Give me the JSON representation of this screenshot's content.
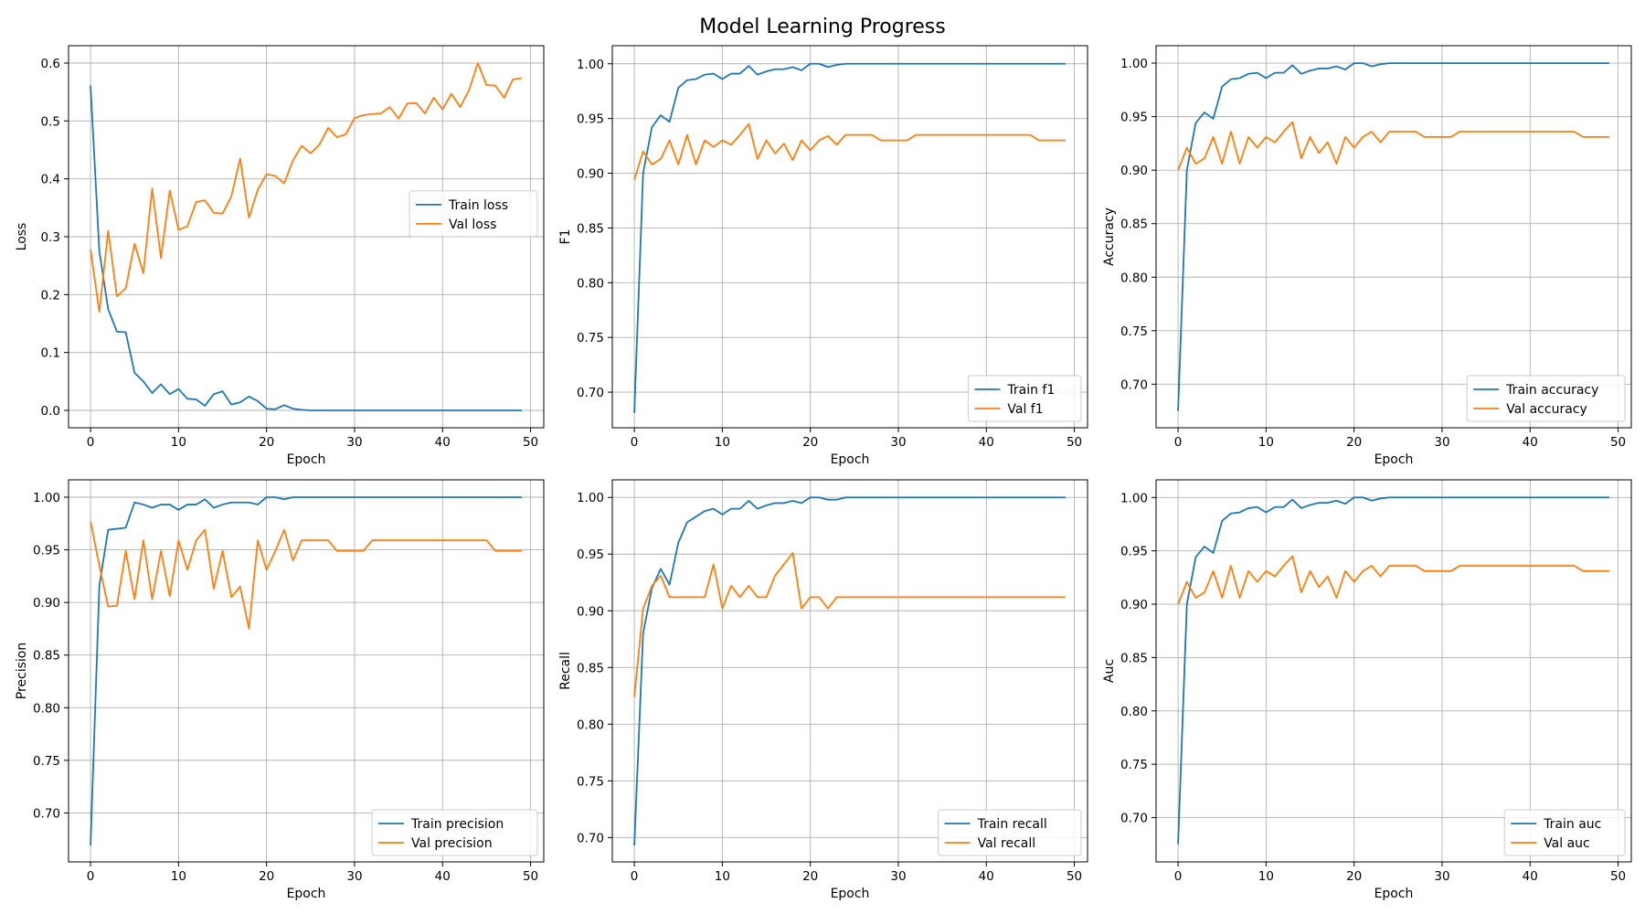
{
  "figure": {
    "title": "Model Learning Progress",
    "colors": {
      "train": "#1f77b4",
      "val": "#ff7f0e",
      "grid": "#b0b0b0"
    }
  },
  "chart_data": [
    {
      "type": "line",
      "xlabel": "Epoch",
      "ylabel": "Loss",
      "xlim": [
        -2.5,
        51.5
      ],
      "ylim": [
        -0.03,
        0.63
      ],
      "xticks": [
        0,
        10,
        20,
        30,
        40,
        50
      ],
      "yticks": [
        0.0,
        0.1,
        0.2,
        0.3,
        0.4,
        0.5,
        0.6
      ],
      "ytick_labels": [
        "0.0",
        "0.1",
        "0.2",
        "0.3",
        "0.4",
        "0.5",
        "0.6"
      ],
      "grid": true,
      "legend_position": "center-right",
      "x": [
        0,
        1,
        2,
        3,
        4,
        5,
        6,
        7,
        8,
        9,
        10,
        11,
        12,
        13,
        14,
        15,
        16,
        17,
        18,
        19,
        20,
        21,
        22,
        23,
        24,
        25,
        26,
        27,
        28,
        29,
        30,
        31,
        32,
        33,
        34,
        35,
        36,
        37,
        38,
        39,
        40,
        41,
        42,
        43,
        44,
        45,
        46,
        47,
        48,
        49
      ],
      "series": [
        {
          "name": "Train loss",
          "role": "train",
          "values": [
            0.561,
            0.275,
            0.175,
            0.136,
            0.135,
            0.065,
            0.05,
            0.03,
            0.045,
            0.028,
            0.037,
            0.02,
            0.019,
            0.008,
            0.028,
            0.033,
            0.01,
            0.014,
            0.024,
            0.016,
            0.003,
            0.002,
            0.009,
            0.003,
            0.001,
            0,
            0,
            0,
            0,
            0,
            0,
            0,
            0,
            0,
            0,
            0,
            0,
            0,
            0,
            0,
            0,
            0,
            0,
            0,
            0,
            0,
            0,
            0,
            0,
            0
          ]
        },
        {
          "name": "Val loss",
          "role": "val",
          "values": [
            0.278,
            0.17,
            0.31,
            0.197,
            0.211,
            0.288,
            0.237,
            0.383,
            0.263,
            0.38,
            0.312,
            0.318,
            0.36,
            0.363,
            0.341,
            0.34,
            0.37,
            0.435,
            0.333,
            0.381,
            0.408,
            0.405,
            0.392,
            0.432,
            0.457,
            0.444,
            0.459,
            0.488,
            0.472,
            0.477,
            0.505,
            0.51,
            0.512,
            0.513,
            0.524,
            0.504,
            0.53,
            0.531,
            0.513,
            0.54,
            0.52,
            0.547,
            0.524,
            0.553,
            0.6,
            0.562,
            0.561,
            0.54,
            0.572,
            0.574
          ]
        }
      ]
    },
    {
      "type": "line",
      "xlabel": "Epoch",
      "ylabel": "F1",
      "xlim": [
        -2.5,
        51.5
      ],
      "ylim": [
        0.6675,
        1.0165
      ],
      "xticks": [
        0,
        10,
        20,
        30,
        40,
        50
      ],
      "yticks": [
        0.7,
        0.75,
        0.8,
        0.85,
        0.9,
        0.95,
        1.0
      ],
      "ytick_labels": [
        "0.70",
        "0.75",
        "0.80",
        "0.85",
        "0.90",
        "0.95",
        "1.00"
      ],
      "grid": true,
      "legend_position": "lower-right",
      "x": [
        0,
        1,
        2,
        3,
        4,
        5,
        6,
        7,
        8,
        9,
        10,
        11,
        12,
        13,
        14,
        15,
        16,
        17,
        18,
        19,
        20,
        21,
        22,
        23,
        24,
        25,
        26,
        27,
        28,
        29,
        30,
        31,
        32,
        33,
        34,
        35,
        36,
        37,
        38,
        39,
        40,
        41,
        42,
        43,
        44,
        45,
        46,
        47,
        48,
        49
      ],
      "series": [
        {
          "name": "Train f1",
          "role": "train",
          "values": [
            0.681,
            0.9,
            0.942,
            0.953,
            0.947,
            0.978,
            0.985,
            0.986,
            0.99,
            0.991,
            0.986,
            0.991,
            0.991,
            0.998,
            0.99,
            0.993,
            0.995,
            0.995,
            0.997,
            0.994,
            1,
            1,
            0.997,
            0.999,
            1,
            1,
            1,
            1,
            1,
            1,
            1,
            1,
            1,
            1,
            1,
            1,
            1,
            1,
            1,
            1,
            1,
            1,
            1,
            1,
            1,
            1,
            1,
            1,
            1,
            1
          ]
        },
        {
          "name": "Val f1",
          "role": "val",
          "values": [
            0.894,
            0.92,
            0.908,
            0.913,
            0.93,
            0.908,
            0.935,
            0.908,
            0.93,
            0.924,
            0.93,
            0.926,
            0.935,
            0.945,
            0.913,
            0.93,
            0.918,
            0.927,
            0.912,
            0.93,
            0.921,
            0.93,
            0.934,
            0.926,
            0.935,
            0.935,
            0.935,
            0.935,
            0.93,
            0.93,
            0.93,
            0.93,
            0.935,
            0.935,
            0.935,
            0.935,
            0.935,
            0.935,
            0.935,
            0.935,
            0.935,
            0.935,
            0.935,
            0.935,
            0.935,
            0.935,
            0.93,
            0.93,
            0.93,
            0.93
          ]
        }
      ]
    },
    {
      "type": "line",
      "xlabel": "Epoch",
      "ylabel": "Accuracy",
      "xlim": [
        -2.5,
        51.5
      ],
      "ylim": [
        0.6593,
        1.0163
      ],
      "xticks": [
        0,
        10,
        20,
        30,
        40,
        50
      ],
      "yticks": [
        0.7,
        0.75,
        0.8,
        0.85,
        0.9,
        0.95,
        1.0
      ],
      "ytick_labels": [
        "0.70",
        "0.75",
        "0.80",
        "0.85",
        "0.90",
        "0.95",
        "1.00"
      ],
      "grid": true,
      "legend_position": "lower-right",
      "x": [
        0,
        1,
        2,
        3,
        4,
        5,
        6,
        7,
        8,
        9,
        10,
        11,
        12,
        13,
        14,
        15,
        16,
        17,
        18,
        19,
        20,
        21,
        22,
        23,
        24,
        25,
        26,
        27,
        28,
        29,
        30,
        31,
        32,
        33,
        34,
        35,
        36,
        37,
        38,
        39,
        40,
        41,
        42,
        43,
        44,
        45,
        46,
        47,
        48,
        49
      ],
      "series": [
        {
          "name": "Train accuracy",
          "role": "train",
          "values": [
            0.675,
            0.9,
            0.944,
            0.954,
            0.948,
            0.978,
            0.985,
            0.986,
            0.99,
            0.991,
            0.986,
            0.991,
            0.991,
            0.998,
            0.99,
            0.993,
            0.995,
            0.995,
            0.997,
            0.994,
            1,
            1,
            0.997,
            0.999,
            1,
            1,
            1,
            1,
            1,
            1,
            1,
            1,
            1,
            1,
            1,
            1,
            1,
            1,
            1,
            1,
            1,
            1,
            1,
            1,
            1,
            1,
            1,
            1,
            1,
            1
          ]
        },
        {
          "name": "Val accuracy",
          "role": "val",
          "values": [
            0.9,
            0.921,
            0.906,
            0.911,
            0.931,
            0.906,
            0.936,
            0.906,
            0.931,
            0.921,
            0.931,
            0.926,
            0.936,
            0.945,
            0.911,
            0.931,
            0.916,
            0.926,
            0.906,
            0.931,
            0.921,
            0.931,
            0.936,
            0.926,
            0.936,
            0.936,
            0.936,
            0.936,
            0.931,
            0.931,
            0.931,
            0.931,
            0.936,
            0.936,
            0.936,
            0.936,
            0.936,
            0.936,
            0.936,
            0.936,
            0.936,
            0.936,
            0.936,
            0.936,
            0.936,
            0.936,
            0.931,
            0.931,
            0.931,
            0.931
          ]
        }
      ]
    },
    {
      "type": "line",
      "xlabel": "Epoch",
      "ylabel": "Precision",
      "xlim": [
        -2.5,
        51.5
      ],
      "ylim": [
        0.6535,
        1.0165
      ],
      "xticks": [
        0,
        10,
        20,
        30,
        40,
        50
      ],
      "yticks": [
        0.7,
        0.75,
        0.8,
        0.85,
        0.9,
        0.95,
        1.0
      ],
      "ytick_labels": [
        "0.70",
        "0.75",
        "0.80",
        "0.85",
        "0.90",
        "0.95",
        "1.00"
      ],
      "grid": true,
      "legend_position": "lower-right",
      "x": [
        0,
        1,
        2,
        3,
        4,
        5,
        6,
        7,
        8,
        9,
        10,
        11,
        12,
        13,
        14,
        15,
        16,
        17,
        18,
        19,
        20,
        21,
        22,
        23,
        24,
        25,
        26,
        27,
        28,
        29,
        30,
        31,
        32,
        33,
        34,
        35,
        36,
        37,
        38,
        39,
        40,
        41,
        42,
        43,
        44,
        45,
        46,
        47,
        48,
        49
      ],
      "series": [
        {
          "name": "Train precision",
          "role": "train",
          "values": [
            0.669,
            0.916,
            0.969,
            0.97,
            0.971,
            0.995,
            0.993,
            0.99,
            0.993,
            0.993,
            0.988,
            0.993,
            0.993,
            0.998,
            0.99,
            0.993,
            0.995,
            0.995,
            0.995,
            0.993,
            1,
            1,
            0.998,
            1,
            1,
            1,
            1,
            1,
            1,
            1,
            1,
            1,
            1,
            1,
            1,
            1,
            1,
            1,
            1,
            1,
            1,
            1,
            1,
            1,
            1,
            1,
            1,
            1,
            1,
            1
          ]
        },
        {
          "name": "Val precision",
          "role": "val",
          "values": [
            0.977,
            0.935,
            0.896,
            0.897,
            0.949,
            0.903,
            0.959,
            0.903,
            0.949,
            0.906,
            0.959,
            0.931,
            0.959,
            0.969,
            0.913,
            0.949,
            0.905,
            0.915,
            0.875,
            0.959,
            0.931,
            0.949,
            0.969,
            0.94,
            0.959,
            0.959,
            0.959,
            0.959,
            0.949,
            0.949,
            0.949,
            0.949,
            0.959,
            0.959,
            0.959,
            0.959,
            0.959,
            0.959,
            0.959,
            0.959,
            0.959,
            0.959,
            0.959,
            0.959,
            0.959,
            0.959,
            0.949,
            0.949,
            0.949,
            0.949
          ]
        }
      ]
    },
    {
      "type": "line",
      "xlabel": "Epoch",
      "ylabel": "Recall",
      "xlim": [
        -2.5,
        51.5
      ],
      "ylim": [
        0.6785,
        1.0155
      ],
      "xticks": [
        0,
        10,
        20,
        30,
        40,
        50
      ],
      "yticks": [
        0.7,
        0.75,
        0.8,
        0.85,
        0.9,
        0.95,
        1.0
      ],
      "ytick_labels": [
        "0.70",
        "0.75",
        "0.80",
        "0.85",
        "0.90",
        "0.95",
        "1.00"
      ],
      "grid": true,
      "legend_position": "lower-right",
      "x": [
        0,
        1,
        2,
        3,
        4,
        5,
        6,
        7,
        8,
        9,
        10,
        11,
        12,
        13,
        14,
        15,
        16,
        17,
        18,
        19,
        20,
        21,
        22,
        23,
        24,
        25,
        26,
        27,
        28,
        29,
        30,
        31,
        32,
        33,
        34,
        35,
        36,
        37,
        38,
        39,
        40,
        41,
        42,
        43,
        44,
        45,
        46,
        47,
        48,
        49
      ],
      "series": [
        {
          "name": "Train recall",
          "role": "train",
          "values": [
            0.693,
            0.88,
            0.92,
            0.937,
            0.923,
            0.96,
            0.978,
            0.983,
            0.988,
            0.99,
            0.985,
            0.99,
            0.99,
            0.997,
            0.99,
            0.993,
            0.995,
            0.995,
            0.997,
            0.995,
            1,
            1,
            0.998,
            0.998,
            1,
            1,
            1,
            1,
            1,
            1,
            1,
            1,
            1,
            1,
            1,
            1,
            1,
            1,
            1,
            1,
            1,
            1,
            1,
            1,
            1,
            1,
            1,
            1,
            1,
            1
          ]
        },
        {
          "name": "Val recall",
          "role": "val",
          "values": [
            0.824,
            0.902,
            0.922,
            0.931,
            0.912,
            0.912,
            0.912,
            0.912,
            0.912,
            0.941,
            0.902,
            0.922,
            0.912,
            0.922,
            0.912,
            0.912,
            0.931,
            0.941,
            0.951,
            0.902,
            0.912,
            0.912,
            0.902,
            0.912,
            0.912,
            0.912,
            0.912,
            0.912,
            0.912,
            0.912,
            0.912,
            0.912,
            0.912,
            0.912,
            0.912,
            0.912,
            0.912,
            0.912,
            0.912,
            0.912,
            0.912,
            0.912,
            0.912,
            0.912,
            0.912,
            0.912,
            0.912,
            0.912,
            0.912,
            0.912
          ]
        }
      ]
    },
    {
      "type": "line",
      "xlabel": "Epoch",
      "ylabel": "Auc",
      "xlim": [
        -2.5,
        51.5
      ],
      "ylim": [
        0.6585,
        1.0165
      ],
      "xticks": [
        0,
        10,
        20,
        30,
        40,
        50
      ],
      "yticks": [
        0.7,
        0.75,
        0.8,
        0.85,
        0.9,
        0.95,
        1.0
      ],
      "ytick_labels": [
        "0.70",
        "0.75",
        "0.80",
        "0.85",
        "0.90",
        "0.95",
        "1.00"
      ],
      "grid": true,
      "legend_position": "lower-right",
      "x": [
        0,
        1,
        2,
        3,
        4,
        5,
        6,
        7,
        8,
        9,
        10,
        11,
        12,
        13,
        14,
        15,
        16,
        17,
        18,
        19,
        20,
        21,
        22,
        23,
        24,
        25,
        26,
        27,
        28,
        29,
        30,
        31,
        32,
        33,
        34,
        35,
        36,
        37,
        38,
        39,
        40,
        41,
        42,
        43,
        44,
        45,
        46,
        47,
        48,
        49
      ],
      "series": [
        {
          "name": "Train auc",
          "role": "train",
          "values": [
            0.675,
            0.9,
            0.944,
            0.954,
            0.948,
            0.978,
            0.985,
            0.986,
            0.99,
            0.991,
            0.986,
            0.991,
            0.991,
            0.998,
            0.99,
            0.993,
            0.995,
            0.995,
            0.997,
            0.994,
            1,
            1,
            0.997,
            0.999,
            1,
            1,
            1,
            1,
            1,
            1,
            1,
            1,
            1,
            1,
            1,
            1,
            1,
            1,
            1,
            1,
            1,
            1,
            1,
            1,
            1,
            1,
            1,
            1,
            1,
            1
          ]
        },
        {
          "name": "Val auc",
          "role": "val",
          "values": [
            0.9,
            0.921,
            0.906,
            0.911,
            0.931,
            0.906,
            0.936,
            0.906,
            0.931,
            0.921,
            0.931,
            0.926,
            0.936,
            0.945,
            0.911,
            0.931,
            0.916,
            0.926,
            0.906,
            0.931,
            0.921,
            0.931,
            0.936,
            0.926,
            0.936,
            0.936,
            0.936,
            0.936,
            0.931,
            0.931,
            0.931,
            0.931,
            0.936,
            0.936,
            0.936,
            0.936,
            0.936,
            0.936,
            0.936,
            0.936,
            0.936,
            0.936,
            0.936,
            0.936,
            0.936,
            0.936,
            0.931,
            0.931,
            0.931,
            0.931
          ]
        }
      ]
    }
  ]
}
